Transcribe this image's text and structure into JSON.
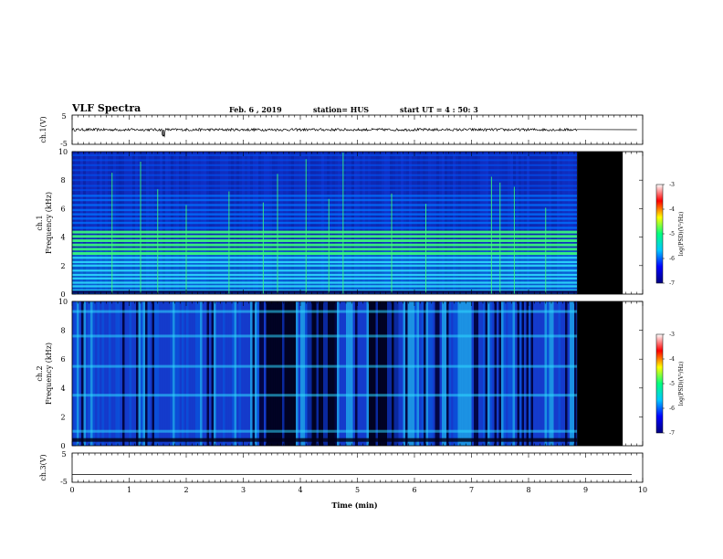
{
  "header": {
    "title": "VLF Spectra",
    "date": "Feb. 6 , 2019",
    "station": "station= HUS",
    "start_ut": "start UT = 4 : 50: 3"
  },
  "chart_data": [
    {
      "type": "line",
      "panel": "ch1-waveform",
      "ylabel": "ch.1(V)",
      "yticks": [
        "5",
        "-5"
      ],
      "ylim": [
        -5,
        5
      ],
      "x": [
        0,
        8.85
      ],
      "y": [
        0,
        0
      ],
      "spike_at_min": 1.6,
      "flat_after_min": 8.85
    },
    {
      "type": "heatmap",
      "panel": "ch1-spectrogram",
      "ylabel_line1": "ch.1",
      "ylabel_line2": "Frequency (kHz)",
      "yticks": [
        "0",
        "2",
        "4",
        "6",
        "8",
        "10"
      ],
      "ylim": [
        0,
        10
      ],
      "xlim": [
        0,
        10
      ],
      "data_end_min": 8.85,
      "colorscale": [
        "#000080",
        "#0000ff",
        "#00c8ff",
        "#00ff80",
        "#ffff00",
        "#ff0000",
        "#ffffff"
      ],
      "bands_khz": [
        0.25,
        0.55,
        0.8,
        1.1,
        1.35,
        1.65,
        2.0,
        2.25,
        2.55,
        2.85,
        3.15,
        3.45,
        3.75,
        4.05,
        4.35,
        4.65,
        5.0,
        5.3,
        5.6,
        5.9,
        6.25,
        6.6,
        6.9,
        7.3,
        7.6,
        8.0,
        8.35,
        8.7,
        9.05,
        9.4,
        9.75
      ],
      "spikes_min": [
        0.7,
        1.2,
        1.5,
        2.0,
        2.75,
        3.35,
        3.6,
        4.1,
        4.5,
        4.75,
        5.6,
        6.2,
        7.35,
        7.5,
        7.75,
        8.3
      ],
      "colorbar": {
        "ticks": [
          "-3",
          "-4",
          "-5",
          "-6",
          "-7"
        ],
        "label": "log(PSD)(V²/Hz)"
      }
    },
    {
      "type": "heatmap",
      "panel": "ch2-spectrogram",
      "ylabel_line1": "ch.2",
      "ylabel_line2": "Frequency (kHz)",
      "yticks": [
        "0",
        "2",
        "4",
        "6",
        "8",
        "10"
      ],
      "ylim": [
        0,
        10
      ],
      "xlim": [
        0,
        10
      ],
      "data_end_min": 8.85,
      "dark_intervals_min": [
        [
          3.4,
          3.9
        ],
        [
          4.1,
          4.6
        ],
        [
          5.2,
          5.7
        ]
      ],
      "lines_khz": [
        1.0,
        3.5,
        5.5,
        7.6,
        9.3
      ],
      "colorbar": {
        "ticks": [
          "-3",
          "-4",
          "-5",
          "-6",
          "-7"
        ],
        "label": "log(PSD)(V²/Hz)"
      }
    },
    {
      "type": "line",
      "panel": "ch3-waveform",
      "ylabel": "ch.3(V)",
      "yticks": [
        "5",
        "-5"
      ],
      "ylim": [
        -5,
        5
      ],
      "x": [
        0,
        10
      ],
      "y": [
        -2.3,
        -2.3
      ]
    }
  ],
  "xaxis": {
    "label": "Time (min)",
    "ticks": [
      "0",
      "1",
      "2",
      "3",
      "4",
      "5",
      "6",
      "7",
      "8",
      "9",
      "10"
    ],
    "xlim": [
      0,
      10
    ]
  }
}
